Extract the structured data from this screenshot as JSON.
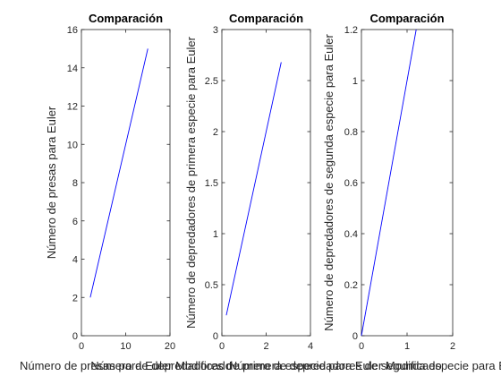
{
  "chart_data": [
    {
      "type": "line",
      "title": "Comparación",
      "xlabel": "Número de presas para Euler Modificado",
      "ylabel": "Número de presas para Euler",
      "xlim": [
        0,
        20
      ],
      "ylim": [
        0,
        16
      ],
      "xticks": [
        "0",
        "10",
        "20"
      ],
      "yticks": [
        "0",
        "2",
        "4",
        "6",
        "8",
        "10",
        "12",
        "14",
        "16"
      ],
      "grid": false,
      "series": [
        {
          "color": "#0000ff",
          "x": [
            2,
            15
          ],
          "y": [
            2,
            15
          ]
        }
      ]
    },
    {
      "type": "line",
      "title": "Comparación",
      "xlabel": "Número de depredadores de primera especie para Euler Modificado",
      "ylabel": "Número de depredadores de primera especie para Euler",
      "xlim": [
        0,
        4
      ],
      "ylim": [
        0,
        3
      ],
      "xticks": [
        "0",
        "2",
        "4"
      ],
      "yticks": [
        "0",
        "0.5",
        "1",
        "1.5",
        "2",
        "2.5",
        "3"
      ],
      "grid": false,
      "series": [
        {
          "color": "#0000ff",
          "x": [
            0.2,
            2.68
          ],
          "y": [
            0.2,
            2.68
          ]
        }
      ]
    },
    {
      "type": "line",
      "title": "Comparación",
      "xlabel": "Número de depredadores de segunda especie para Euler Modificado",
      "ylabel": "Número de depredadores de segunda especie para Euler",
      "xlim": [
        0,
        2
      ],
      "ylim": [
        0,
        1.2
      ],
      "xticks": [
        "0",
        "1",
        "2"
      ],
      "yticks": [
        "0",
        "0.2",
        "0.4",
        "0.6",
        "0.8",
        "1",
        "1.2"
      ],
      "grid": false,
      "series": [
        {
          "color": "#0000ff",
          "x": [
            0,
            1.2
          ],
          "y": [
            0,
            1.2
          ]
        }
      ]
    }
  ]
}
